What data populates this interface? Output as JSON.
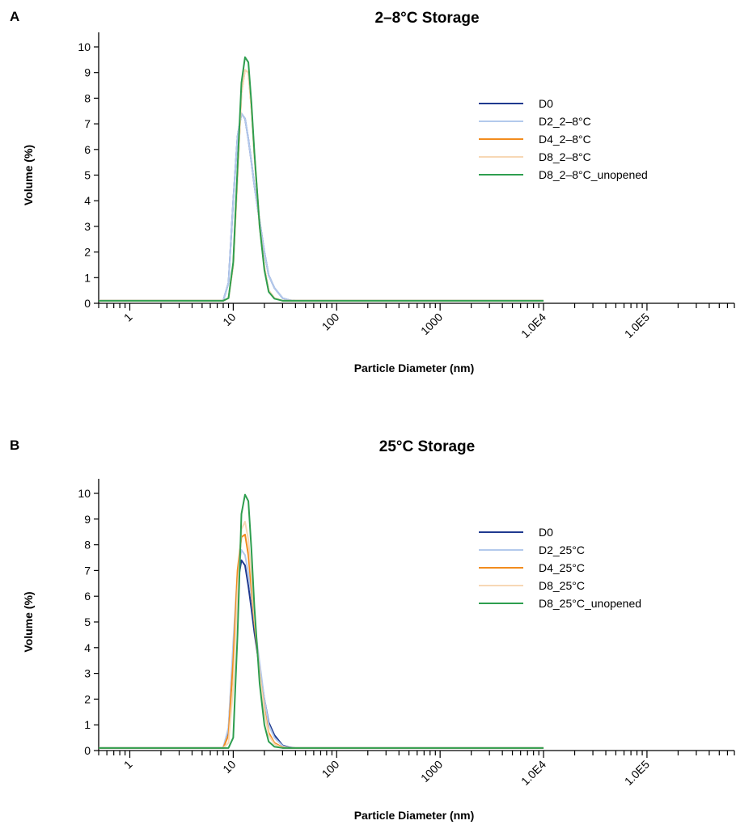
{
  "chart_data": [
    {
      "type": "line",
      "panel": "A",
      "title": "2–8°C Storage",
      "xlabel": "Particle Diameter (nm)",
      "ylabel": "Volume (%)",
      "xscale": "log",
      "xlim": [
        0.5,
        700000
      ],
      "ylim": [
        0,
        10
      ],
      "xticks": [
        1,
        10,
        100,
        1000,
        10000,
        100000
      ],
      "xtick_labels": [
        "1",
        "10",
        "100",
        "1000",
        "1.0E4",
        "1.0E5"
      ],
      "yticks": [
        0,
        1,
        2,
        3,
        4,
        5,
        6,
        7,
        8,
        9,
        10
      ],
      "grid": false,
      "legend_position": "right",
      "x": [
        0.5,
        8,
        9,
        10,
        11,
        12,
        13,
        14,
        15,
        16,
        18,
        20,
        22,
        25,
        30,
        35,
        40,
        50,
        100,
        1000,
        10000
      ],
      "series": [
        {
          "name": "D0",
          "color": "#1f3a8f",
          "values": [
            0.1,
            0.1,
            0.8,
            4.0,
            6.5,
            7.4,
            7.2,
            6.4,
            5.5,
            4.6,
            3.2,
            2.0,
            1.1,
            0.6,
            0.2,
            0.12,
            0.1,
            0.1,
            0.1,
            0.1,
            0.1
          ]
        },
        {
          "name": "D2_2–8°C",
          "color": "#b3c9ec",
          "values": [
            0.1,
            0.1,
            0.8,
            4.0,
            6.5,
            7.4,
            7.2,
            6.4,
            5.5,
            4.6,
            3.2,
            2.0,
            1.1,
            0.6,
            0.2,
            0.12,
            0.1,
            0.1,
            0.1,
            0.1,
            0.1
          ]
        },
        {
          "name": "D4_2–8°C",
          "color": "#f28c1e",
          "values": [
            0.1,
            0.1,
            0.2,
            1.5,
            5.0,
            8.2,
            9.1,
            9.0,
            7.6,
            5.8,
            3.0,
            1.4,
            0.5,
            0.2,
            0.1,
            0.1,
            0.1,
            0.1,
            0.1,
            0.1,
            0.1
          ]
        },
        {
          "name": "D8_2–8°C",
          "color": "#f7d8b5",
          "values": [
            0.1,
            0.1,
            0.2,
            1.5,
            5.0,
            8.2,
            9.1,
            9.0,
            7.6,
            5.8,
            3.0,
            1.4,
            0.5,
            0.2,
            0.1,
            0.1,
            0.1,
            0.1,
            0.1,
            0.1,
            0.1
          ]
        },
        {
          "name": "D8_2–8°C_unopened",
          "color": "#2e9e4f",
          "values": [
            0.1,
            0.1,
            0.2,
            1.6,
            5.3,
            8.6,
            9.6,
            9.4,
            7.8,
            5.9,
            3.0,
            1.3,
            0.45,
            0.18,
            0.1,
            0.1,
            0.1,
            0.1,
            0.1,
            0.1,
            0.1
          ]
        }
      ]
    },
    {
      "type": "line",
      "panel": "B",
      "title": "25°C Storage",
      "xlabel": "Particle Diameter (nm)",
      "ylabel": "Volume (%)",
      "xscale": "log",
      "xlim": [
        0.5,
        700000
      ],
      "ylim": [
        0,
        10
      ],
      "xticks": [
        1,
        10,
        100,
        1000,
        10000,
        100000
      ],
      "xtick_labels": [
        "1",
        "10",
        "100",
        "1000",
        "1.0E4",
        "1.0E5"
      ],
      "yticks": [
        0,
        1,
        2,
        3,
        4,
        5,
        6,
        7,
        8,
        9,
        10
      ],
      "grid": false,
      "legend_position": "right",
      "x": [
        0.5,
        8,
        9,
        10,
        11,
        12,
        13,
        14,
        15,
        16,
        18,
        20,
        22,
        25,
        30,
        35,
        40,
        50,
        100,
        1000,
        10000
      ],
      "series": [
        {
          "name": "D0",
          "color": "#1f3a8f",
          "values": [
            0.1,
            0.1,
            0.8,
            4.0,
            6.5,
            7.4,
            7.2,
            6.4,
            5.5,
            4.6,
            3.2,
            2.0,
            1.1,
            0.6,
            0.2,
            0.12,
            0.1,
            0.1,
            0.1,
            0.1,
            0.1
          ]
        },
        {
          "name": "D2_25°C",
          "color": "#b3c9ec",
          "values": [
            0.1,
            0.1,
            0.9,
            4.2,
            6.9,
            7.8,
            7.6,
            6.9,
            6.0,
            5.0,
            3.4,
            2.0,
            1.0,
            0.5,
            0.18,
            0.1,
            0.1,
            0.1,
            0.1,
            0.1,
            0.1
          ]
        },
        {
          "name": "D4_25°C",
          "color": "#f28c1e",
          "values": [
            0.1,
            0.1,
            0.6,
            3.5,
            7.0,
            8.3,
            8.4,
            7.6,
            6.3,
            5.0,
            3.0,
            1.6,
            0.7,
            0.3,
            0.12,
            0.1,
            0.1,
            0.1,
            0.1,
            0.1,
            0.1
          ]
        },
        {
          "name": "D8_25°C",
          "color": "#f7d8b5",
          "values": [
            0.1,
            0.1,
            0.3,
            2.5,
            6.2,
            8.6,
            8.9,
            8.2,
            6.8,
            5.2,
            3.0,
            1.5,
            0.6,
            0.25,
            0.1,
            0.1,
            0.1,
            0.1,
            0.1,
            0.1,
            0.1
          ]
        },
        {
          "name": "D8_25°C_unopened",
          "color": "#2e9e4f",
          "values": [
            0.1,
            0.1,
            0.1,
            0.5,
            4.5,
            9.2,
            9.95,
            9.7,
            7.8,
            5.6,
            2.6,
            1.0,
            0.35,
            0.15,
            0.1,
            0.1,
            0.1,
            0.1,
            0.1,
            0.1,
            0.1
          ]
        }
      ]
    }
  ]
}
